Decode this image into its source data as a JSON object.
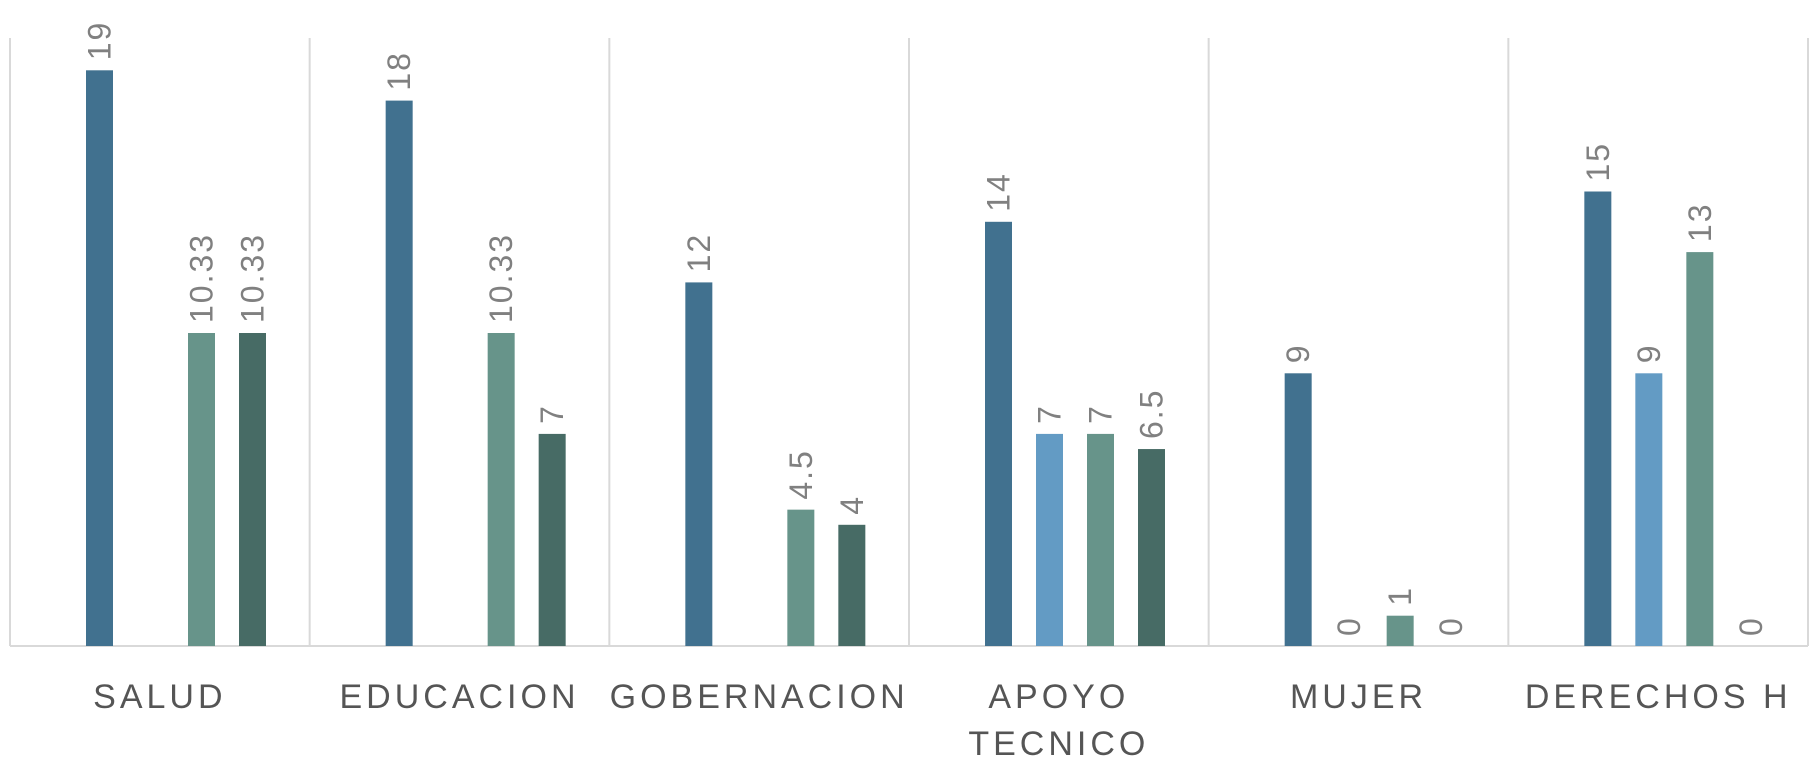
{
  "chart_data": {
    "type": "bar",
    "title": "",
    "xlabel": "",
    "ylabel": "",
    "ylim": [
      0,
      20
    ],
    "grid": "vertical category separators",
    "legend": "none",
    "categories": [
      [
        "SALUD"
      ],
      [
        "EDUCACION"
      ],
      [
        "GOBERNACION"
      ],
      [
        "APOYO",
        "TECNICO"
      ],
      [
        "MUJER"
      ],
      [
        "DERECHOS H"
      ]
    ],
    "series": [
      {
        "color": "#41718f",
        "values": [
          19,
          18,
          12,
          14,
          9,
          15
        ],
        "labels": [
          "19",
          "18",
          "12",
          "14",
          "9",
          "15"
        ]
      },
      {
        "color": "#639bc4",
        "values": [
          null,
          null,
          null,
          7,
          0,
          9
        ],
        "labels": [
          null,
          null,
          null,
          "7",
          "0",
          "9"
        ]
      },
      {
        "color": "#67948a",
        "values": [
          10.33,
          10.33,
          4.5,
          7,
          1,
          13
        ],
        "labels": [
          "10.33",
          "10.33",
          "4.5",
          "7",
          "1",
          "13"
        ]
      },
      {
        "color": "#476b65",
        "values": [
          10.33,
          7,
          4,
          6.5,
          0,
          0
        ],
        "labels": [
          "10.33",
          "7",
          "4",
          "6.5",
          "0",
          "0"
        ]
      }
    ]
  }
}
